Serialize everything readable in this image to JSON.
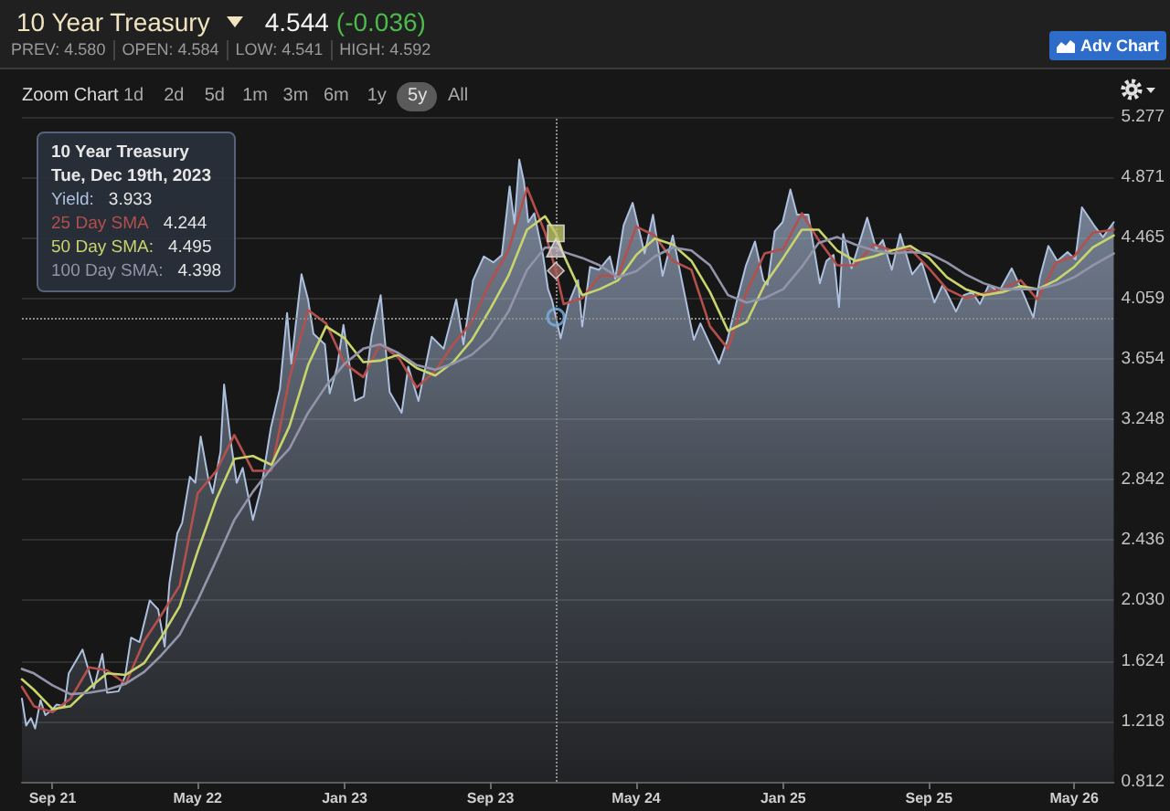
{
  "chart_data": {
    "type": "area",
    "title": "10 Year Treasury",
    "annotations": [
      "4.544",
      "(-0.036)",
      "PREV: 4.580",
      "OPEN: 4.584",
      "LOW: 4.541",
      "HIGH: 4.592",
      "Adv Chart",
      "Zoom Chart",
      "1d",
      "2d",
      "5d",
      "1m",
      "3m",
      "6m",
      "1y",
      "5y",
      "All",
      "Tue, Dec 19th, 2023",
      "3.933",
      "4.244",
      "4.495",
      "4.398"
    ],
    "xlim": [
      "2021-07-12",
      "2026-07-06"
    ],
    "xticks": [
      {
        "value": "2021-09",
        "label": "Sep 21"
      },
      {
        "value": "2022-05",
        "label": "May 22"
      },
      {
        "value": "2023-01",
        "label": "Jan 23"
      },
      {
        "value": "2023-09",
        "label": "Sep 23"
      },
      {
        "value": "2024-05",
        "label": "May 24"
      },
      {
        "value": "2025-01",
        "label": "Jan 25"
      },
      {
        "value": "2025-09",
        "label": "Sep 25"
      },
      {
        "value": "2026-05",
        "label": "May 26"
      }
    ],
    "ylim": [
      0.812,
      5.277
    ],
    "yticks": [
      0.812,
      1.218,
      1.624,
      {
        "value": 2.03,
        "label": "2.030"
      },
      2.436,
      2.842,
      3.248,
      3.654,
      4.059,
      4.465,
      4.871,
      5.277
    ],
    "grid": "y",
    "ref_lines": [
      {
        "axis": "x",
        "value": "2023-12-19",
        "color": "#8c8c8c",
        "line_style": "dotted"
      },
      {
        "axis": "y",
        "value": 3.933,
        "color": "#8c8c8c",
        "line_style": "dotted"
      }
    ],
    "x": [
      "2021-07-12",
      "2021-08-01",
      "2021-09-01",
      "2021-10-01",
      "2021-11-01",
      "2021-12-01",
      "2022-01-01",
      "2022-02-01",
      "2022-03-01",
      "2022-04-01",
      "2022-05-01",
      "2022-06-01",
      "2022-07-01",
      "2022-08-01",
      "2022-09-01",
      "2022-10-01",
      "2022-11-01",
      "2022-12-01",
      "2023-01-01",
      "2023-02-01",
      "2023-03-01",
      "2023-04-01",
      "2023-05-01",
      "2023-06-01",
      "2023-07-01",
      "2023-08-01",
      "2023-09-01",
      "2023-10-01",
      "2023-11-01",
      "2023-12-01",
      "2023-12-19",
      "2024-01-01",
      "2024-02-01",
      "2024-03-01",
      "2024-04-01",
      "2024-05-01",
      "2024-06-01",
      "2024-07-01",
      "2024-08-01",
      "2024-09-01",
      "2024-10-01",
      "2024-11-01",
      "2024-12-01",
      "2025-01-01",
      "2025-02-01",
      "2025-03-01",
      "2025-04-01",
      "2025-05-01",
      "2025-06-01",
      "2025-07-01",
      "2025-08-01",
      "2025-09-01",
      "2025-10-01",
      "2025-11-01",
      "2025-12-01",
      "2026-01-01",
      "2026-02-01",
      "2026-03-01",
      "2026-04-01",
      "2026-05-01",
      "2026-06-01",
      "2026-07-06"
    ],
    "series": [
      {
        "name": "Yield:",
        "color": "#adc0de",
        "x": [
          "2021-07-12",
          "2021-07-19",
          "2021-07-27",
          "2021-08-03",
          "2021-08-12",
          "2021-08-20",
          "2021-09-01",
          "2021-09-08",
          "2021-09-21",
          "2021-09-28",
          "2021-10-08",
          "2021-10-21",
          "2021-11-01",
          "2021-11-09",
          "2021-11-23",
          "2021-12-01",
          "2021-12-20",
          "2021-12-31",
          "2022-01-10",
          "2022-01-24",
          "2022-02-10",
          "2022-02-24",
          "2022-03-07",
          "2022-03-15",
          "2022-03-28",
          "2022-04-05",
          "2022-04-18",
          "2022-04-27",
          "2022-05-06",
          "2022-05-19",
          "2022-05-26",
          "2022-06-08",
          "2022-06-14",
          "2022-06-24",
          "2022-07-05",
          "2022-07-15",
          "2022-08-01",
          "2022-08-15",
          "2022-08-31",
          "2022-09-15",
          "2022-09-27",
          "2022-10-04",
          "2022-10-21",
          "2022-11-01",
          "2022-11-10",
          "2022-11-29",
          "2022-12-07",
          "2022-12-19",
          "2022-12-30",
          "2023-01-18",
          "2023-02-02",
          "2023-02-15",
          "2023-03-02",
          "2023-03-17",
          "2023-04-06",
          "2023-04-17",
          "2023-05-04",
          "2023-05-26",
          "2023-06-15",
          "2023-07-06",
          "2023-07-18",
          "2023-08-03",
          "2023-08-21",
          "2023-09-06",
          "2023-09-20",
          "2023-10-03",
          "2023-10-11",
          "2023-10-19",
          "2023-10-27",
          "2023-11-03",
          "2023-11-13",
          "2023-11-28",
          "2023-12-06",
          "2023-12-13",
          "2023-12-19",
          "2023-12-27",
          "2024-01-09",
          "2024-01-25",
          "2024-02-01",
          "2024-02-14",
          "2024-02-29",
          "2024-03-18",
          "2024-03-27",
          "2024-04-10",
          "2024-04-25",
          "2024-05-15",
          "2024-05-29",
          "2024-06-14",
          "2024-07-01",
          "2024-07-17",
          "2024-08-05",
          "2024-08-16",
          "2024-09-16",
          "2024-09-30",
          "2024-10-15",
          "2024-10-31",
          "2024-11-15",
          "2024-11-29",
          "2024-12-06",
          "2024-12-18",
          "2024-12-31",
          "2025-01-13",
          "2025-01-24",
          "2025-02-12",
          "2025-03-03",
          "2025-03-14",
          "2025-03-26",
          "2025-04-04",
          "2025-04-11",
          "2025-04-25",
          "2025-05-21",
          "2025-06-05",
          "2025-06-16",
          "2025-07-01",
          "2025-07-15",
          "2025-08-04",
          "2025-08-20",
          "2025-09-10",
          "2025-09-24",
          "2025-10-16",
          "2025-10-29",
          "2025-11-12",
          "2025-11-25",
          "2025-12-10",
          "2025-12-26",
          "2026-01-17",
          "2026-02-02",
          "2026-02-22",
          "2026-03-05",
          "2026-03-19",
          "2026-04-03",
          "2026-04-20",
          "2026-05-03",
          "2026-05-14",
          "2026-06-03",
          "2026-06-18",
          "2026-07-06"
        ],
        "values": [
          1.37,
          1.19,
          1.24,
          1.17,
          1.36,
          1.26,
          1.3,
          1.33,
          1.32,
          1.54,
          1.61,
          1.7,
          1.55,
          1.44,
          1.67,
          1.41,
          1.42,
          1.52,
          1.78,
          1.75,
          2.03,
          1.97,
          1.72,
          2.15,
          2.48,
          2.55,
          2.86,
          2.82,
          3.13,
          2.84,
          2.75,
          3.03,
          3.48,
          3.13,
          2.82,
          2.92,
          2.57,
          2.79,
          3.19,
          3.45,
          3.96,
          3.62,
          4.22,
          4.05,
          3.82,
          3.75,
          3.42,
          3.59,
          3.88,
          3.37,
          3.4,
          3.81,
          4.08,
          3.43,
          3.29,
          3.6,
          3.37,
          3.8,
          3.72,
          4.05,
          3.75,
          4.18,
          4.34,
          4.3,
          4.35,
          4.81,
          4.56,
          4.99,
          4.84,
          4.57,
          4.63,
          4.34,
          4.12,
          4.04,
          3.933,
          3.79,
          4.02,
          4.18,
          3.87,
          4.27,
          4.25,
          4.34,
          4.19,
          4.55,
          4.7,
          4.36,
          4.62,
          4.21,
          4.48,
          4.16,
          3.78,
          3.89,
          3.62,
          3.78,
          4.03,
          4.28,
          4.44,
          4.18,
          4.15,
          4.51,
          4.57,
          4.79,
          4.62,
          4.62,
          4.16,
          4.31,
          4.35,
          4.0,
          4.49,
          4.26,
          4.6,
          4.39,
          4.45,
          4.25,
          4.49,
          4.22,
          4.3,
          4.03,
          4.15,
          3.97,
          4.08,
          4.1,
          4.02,
          4.15,
          4.1,
          4.26,
          4.12,
          3.93,
          4.2,
          4.41,
          4.31,
          4.37,
          4.32,
          4.67,
          4.55,
          4.47,
          4.57
        ]
      },
      {
        "type": "line",
        "name": "25 Day SMA",
        "color": "#b4504c",
        "values": [
          1.45,
          1.32,
          1.28,
          1.37,
          1.58,
          1.56,
          1.47,
          1.76,
          1.93,
          2.13,
          2.75,
          2.9,
          3.14,
          2.9,
          2.9,
          3.52,
          3.98,
          3.89,
          3.62,
          3.53,
          3.75,
          3.66,
          3.46,
          3.57,
          3.75,
          3.9,
          4.17,
          4.38,
          4.8,
          4.5,
          4.244,
          4.02,
          4.06,
          4.21,
          4.21,
          4.54,
          4.48,
          4.31,
          4.25,
          3.87,
          3.72,
          4.1,
          4.36,
          4.39,
          4.63,
          4.45,
          4.28,
          4.28,
          4.42,
          4.38,
          4.39,
          4.26,
          4.12,
          4.06,
          4.09,
          4.12,
          4.18,
          4.05,
          4.3,
          4.34,
          4.5,
          4.52
        ]
      },
      {
        "type": "line",
        "name": "50 Day SMA:",
        "color": "#c8d46c",
        "values": [
          1.5,
          1.43,
          1.3,
          1.32,
          1.44,
          1.54,
          1.53,
          1.61,
          1.78,
          1.99,
          2.36,
          2.71,
          2.98,
          3.0,
          2.94,
          3.2,
          3.61,
          3.87,
          3.79,
          3.63,
          3.64,
          3.68,
          3.59,
          3.54,
          3.63,
          3.78,
          3.99,
          4.21,
          4.52,
          4.61,
          4.495,
          4.35,
          4.08,
          4.12,
          4.18,
          4.35,
          4.46,
          4.42,
          4.31,
          4.1,
          3.84,
          3.9,
          4.15,
          4.33,
          4.52,
          4.52,
          4.38,
          4.31,
          4.34,
          4.38,
          4.41,
          4.33,
          4.2,
          4.12,
          4.08,
          4.1,
          4.14,
          4.12,
          4.18,
          4.27,
          4.4,
          4.48
        ]
      },
      {
        "type": "line",
        "name": "100 Day SMA:",
        "color": "#9294aa",
        "values": [
          1.57,
          1.54,
          1.46,
          1.4,
          1.41,
          1.43,
          1.47,
          1.55,
          1.66,
          1.8,
          2.03,
          2.3,
          2.57,
          2.76,
          2.92,
          3.05,
          3.29,
          3.47,
          3.62,
          3.72,
          3.75,
          3.69,
          3.61,
          3.58,
          3.62,
          3.68,
          3.79,
          3.97,
          4.25,
          4.4,
          4.398,
          4.37,
          4.33,
          4.28,
          4.2,
          4.24,
          4.34,
          4.4,
          4.38,
          4.28,
          4.08,
          4.03,
          4.06,
          4.12,
          4.27,
          4.43,
          4.47,
          4.42,
          4.38,
          4.36,
          4.37,
          4.36,
          4.3,
          4.22,
          4.16,
          4.12,
          4.12,
          4.12,
          4.15,
          4.2,
          4.28,
          4.36
        ]
      },
      {
        "type": "scatter",
        "color": "#78b4ea",
        "marker": "circle",
        "x": [
          "2023-12-19"
        ],
        "values": [
          3.933
        ]
      },
      {
        "type": "scatter",
        "color": "#a0605c",
        "marker": "diamond",
        "x": [
          "2023-12-19"
        ],
        "values": [
          4.244
        ]
      },
      {
        "type": "scatter",
        "color": "#bfc56a",
        "marker": "square",
        "x": [
          "2023-12-19"
        ],
        "values": [
          4.495
        ]
      },
      {
        "type": "scatter",
        "color": "#c4b4bc",
        "marker": "triangle",
        "x": [
          "2023-12-19"
        ],
        "values": [
          4.398
        ]
      }
    ]
  }
}
